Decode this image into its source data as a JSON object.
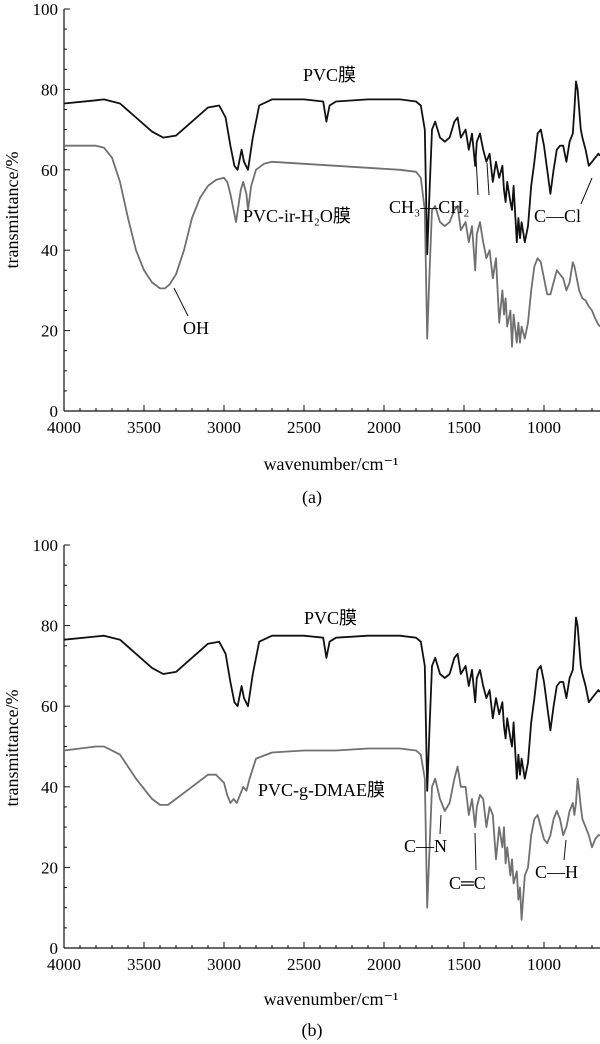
{
  "chart_data": [
    {
      "type": "line",
      "panel_label": "(a)",
      "xlabel": "wavenumber/cm⁻¹",
      "ylabel": "transmittance/%",
      "xlim": [
        4000,
        650
      ],
      "ylim": [
        0,
        100
      ],
      "xticks": [
        4000,
        3500,
        3000,
        2500,
        2000,
        1500,
        1000
      ],
      "yticks": [
        0,
        20,
        40,
        60,
        80,
        100
      ],
      "series": [
        {
          "name": "PVC膜",
          "color": "#111111",
          "x": [
            4000,
            3800,
            3750,
            3650,
            3550,
            3450,
            3380,
            3300,
            3200,
            3100,
            3030,
            2990,
            2960,
            2935,
            2915,
            2890,
            2875,
            2850,
            2820,
            2780,
            2700,
            2500,
            2380,
            2360,
            2340,
            2300,
            2100,
            1900,
            1800,
            1770,
            1745,
            1730,
            1715,
            1700,
            1680,
            1650,
            1620,
            1590,
            1560,
            1540,
            1520,
            1490,
            1470,
            1450,
            1430,
            1420,
            1400,
            1380,
            1360,
            1340,
            1320,
            1300,
            1280,
            1260,
            1250,
            1240,
            1230,
            1210,
            1200,
            1190,
            1170,
            1160,
            1150,
            1140,
            1120,
            1100,
            1080,
            1060,
            1040,
            1020,
            1000,
            980,
            960,
            940,
            920,
            900,
            880,
            860,
            840,
            820,
            810,
            800,
            790,
            780,
            770,
            760,
            740,
            720,
            700,
            680,
            660,
            650
          ],
          "y": [
            76.5,
            77.3,
            77.5,
            76.5,
            73,
            69.5,
            68,
            68.5,
            72,
            75.5,
            76,
            73,
            66,
            61,
            60,
            65,
            62,
            60,
            68,
            76,
            77.5,
            77.5,
            77,
            72,
            76,
            77,
            77.5,
            77.5,
            77,
            76,
            70,
            39,
            55,
            70,
            72,
            68,
            67,
            68,
            72,
            73,
            68,
            70,
            65,
            69,
            61,
            67,
            69,
            65,
            62,
            64,
            57,
            62,
            58,
            61,
            55,
            52,
            57,
            52,
            50,
            56,
            42,
            48,
            43,
            47,
            42,
            46,
            56,
            62,
            69,
            70,
            66,
            60,
            54,
            60,
            65,
            66,
            66,
            62,
            67,
            69,
            75,
            82,
            80,
            75,
            70,
            68,
            65,
            61,
            62,
            63,
            64,
            63.5
          ],
          "label": "PVC膜"
        },
        {
          "name": "PVC-ir-H₂O膜",
          "color": "#707070",
          "x": [
            4000,
            3800,
            3750,
            3700,
            3650,
            3600,
            3550,
            3500,
            3450,
            3400,
            3370,
            3340,
            3300,
            3250,
            3200,
            3150,
            3100,
            3050,
            3000,
            2980,
            2960,
            2940,
            2925,
            2910,
            2895,
            2880,
            2860,
            2850,
            2830,
            2800,
            2750,
            2700,
            2500,
            2300,
            2100,
            1900,
            1800,
            1770,
            1745,
            1730,
            1715,
            1700,
            1680,
            1650,
            1620,
            1590,
            1560,
            1540,
            1520,
            1490,
            1470,
            1450,
            1430,
            1420,
            1400,
            1380,
            1360,
            1340,
            1320,
            1300,
            1280,
            1260,
            1250,
            1240,
            1230,
            1210,
            1200,
            1190,
            1170,
            1160,
            1150,
            1140,
            1120,
            1100,
            1080,
            1060,
            1040,
            1020,
            1000,
            980,
            960,
            940,
            920,
            900,
            880,
            860,
            840,
            820,
            810,
            800,
            790,
            780,
            770,
            760,
            740,
            720,
            700,
            680,
            660,
            650
          ],
          "y": [
            66,
            66,
            65.5,
            63,
            57,
            48,
            40,
            35,
            32,
            30.5,
            30.5,
            31.5,
            34,
            40,
            48,
            53,
            56,
            57.5,
            58,
            57,
            54,
            50,
            47,
            51,
            55,
            57,
            54,
            50,
            56,
            60,
            61.5,
            62,
            61.5,
            61,
            60.5,
            60,
            59.5,
            58,
            50,
            18,
            35,
            50,
            51,
            47,
            46,
            47,
            50,
            51,
            45,
            47,
            42,
            46,
            35,
            44,
            47,
            42,
            38,
            40,
            33,
            38,
            22,
            30,
            24,
            28,
            21,
            25,
            16,
            24,
            17,
            22,
            17,
            21,
            18,
            22,
            30,
            36,
            38,
            37,
            33,
            29,
            29,
            32,
            35,
            34,
            33,
            30,
            32,
            37,
            36,
            34,
            32,
            30,
            29,
            28,
            27.5,
            26,
            25,
            23,
            21.5,
            21
          ],
          "label": "PVC-ir-H₂O膜"
        }
      ],
      "annotations": [
        "PVC膜",
        "PVC-ir-H₂O膜",
        "OH",
        "CH₃—CH₂",
        "C—Cl"
      ]
    },
    {
      "type": "line",
      "panel_label": "(b)",
      "xlabel": "wavenumber/cm⁻¹",
      "ylabel": "transmittance/%",
      "xlim": [
        4000,
        650
      ],
      "ylim": [
        0,
        100
      ],
      "xticks": [
        4000,
        3500,
        3000,
        2500,
        2000,
        1500,
        1000
      ],
      "yticks": [
        0,
        20,
        40,
        60,
        80,
        100
      ],
      "series": [
        {
          "name": "PVC膜",
          "color": "#111111",
          "x": [
            4000,
            3800,
            3750,
            3650,
            3550,
            3450,
            3380,
            3300,
            3200,
            3100,
            3030,
            2990,
            2960,
            2935,
            2915,
            2890,
            2875,
            2850,
            2820,
            2780,
            2700,
            2500,
            2380,
            2360,
            2340,
            2300,
            2100,
            1900,
            1800,
            1770,
            1745,
            1730,
            1715,
            1700,
            1680,
            1650,
            1620,
            1590,
            1560,
            1540,
            1520,
            1490,
            1470,
            1450,
            1430,
            1420,
            1400,
            1380,
            1360,
            1340,
            1320,
            1300,
            1280,
            1260,
            1250,
            1240,
            1230,
            1210,
            1200,
            1190,
            1170,
            1160,
            1150,
            1140,
            1120,
            1100,
            1080,
            1060,
            1040,
            1020,
            1000,
            980,
            960,
            940,
            920,
            900,
            880,
            860,
            840,
            820,
            810,
            800,
            790,
            780,
            770,
            760,
            740,
            720,
            700,
            680,
            660,
            650
          ],
          "y": [
            76.5,
            77.3,
            77.5,
            76.5,
            73,
            69.5,
            68,
            68.5,
            72,
            75.5,
            76,
            73,
            66,
            61,
            60,
            65,
            62,
            60,
            68,
            76,
            77.5,
            77.5,
            77,
            72,
            76,
            77,
            77.5,
            77.5,
            77,
            76,
            70,
            39,
            55,
            70,
            72,
            68,
            67,
            68,
            72,
            73,
            68,
            70,
            65,
            69,
            61,
            67,
            69,
            65,
            62,
            64,
            57,
            62,
            58,
            61,
            55,
            52,
            57,
            52,
            50,
            56,
            42,
            48,
            43,
            47,
            42,
            46,
            56,
            62,
            69,
            70,
            66,
            60,
            54,
            60,
            65,
            66,
            66,
            62,
            67,
            69,
            75,
            82,
            80,
            75,
            70,
            68,
            65,
            61,
            62,
            63,
            64,
            63.5
          ],
          "label": "PVC膜"
        },
        {
          "name": "PVC-g-DMAE膜",
          "color": "#707070",
          "x": [
            4000,
            3800,
            3750,
            3650,
            3550,
            3450,
            3400,
            3350,
            3300,
            3200,
            3100,
            3050,
            3000,
            2980,
            2960,
            2940,
            2920,
            2900,
            2880,
            2860,
            2840,
            2800,
            2700,
            2500,
            2300,
            2100,
            1900,
            1800,
            1770,
            1745,
            1730,
            1715,
            1700,
            1680,
            1650,
            1620,
            1590,
            1560,
            1540,
            1520,
            1490,
            1470,
            1450,
            1430,
            1420,
            1400,
            1380,
            1360,
            1340,
            1320,
            1300,
            1280,
            1260,
            1250,
            1240,
            1230,
            1210,
            1200,
            1190,
            1170,
            1160,
            1150,
            1140,
            1120,
            1100,
            1080,
            1060,
            1040,
            1020,
            1000,
            980,
            960,
            940,
            920,
            900,
            880,
            860,
            840,
            820,
            810,
            800,
            790,
            780,
            770,
            760,
            740,
            720,
            700,
            680,
            660,
            650
          ],
          "y": [
            49,
            50,
            50,
            48,
            42,
            37,
            35.5,
            35.5,
            37,
            40,
            43,
            43,
            41,
            38,
            36,
            37,
            36,
            38,
            40,
            39,
            42,
            47,
            48.5,
            49,
            49,
            49.5,
            49.5,
            49,
            48,
            42,
            10,
            25,
            40,
            42,
            37,
            34,
            36,
            42,
            45,
            40,
            40,
            33,
            37,
            30,
            35,
            38,
            37,
            30,
            35,
            33,
            22,
            30,
            25,
            30,
            21,
            25,
            18,
            22,
            16,
            19,
            12,
            15,
            7,
            18,
            20,
            28,
            32,
            33,
            30,
            27,
            26,
            28,
            32,
            34,
            32,
            28,
            30,
            34,
            36,
            33,
            36,
            42,
            39,
            35,
            32,
            30,
            28,
            25,
            27,
            28,
            28
          ],
          "label": "PVC-g-DMAE膜"
        }
      ],
      "annotations": [
        "PVC膜",
        "PVC-g-DMAE膜",
        "C—N",
        "C═C",
        "C—H"
      ]
    }
  ],
  "panels": [
    {
      "top_series_label": "PVC膜",
      "bottom_series_label": "PVC-ir-H₂O膜",
      "annotations": [
        {
          "text": "OH"
        },
        {
          "text": "CH₃—CH₂"
        },
        {
          "text": "C—Cl"
        }
      ],
      "xlabel": "wavenumber/cm⁻¹",
      "ylabel": "transmittance/%",
      "panel_label": "(a)"
    },
    {
      "top_series_label": "PVC膜",
      "bottom_series_label": "PVC-g-DMAE膜",
      "annotations": [
        {
          "text": "C—N"
        },
        {
          "text": "C═C"
        },
        {
          "text": "C—H"
        }
      ],
      "xlabel": "wavenumber/cm⁻¹",
      "ylabel": "transmittance/%",
      "panel_label": "(b)"
    }
  ]
}
